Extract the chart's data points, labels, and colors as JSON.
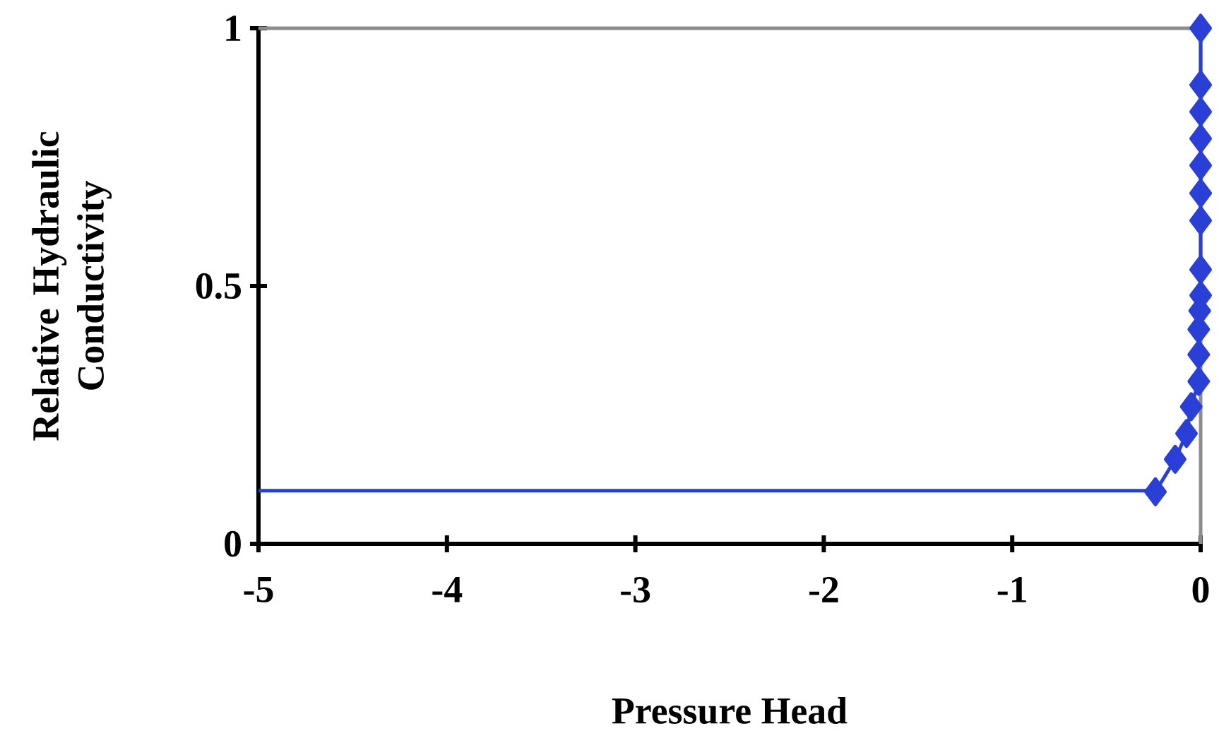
{
  "chart_data": {
    "type": "line",
    "xlabel": "Pressure Head",
    "ylabel": "Relative Hydraulic Conductivity",
    "xlim": [
      -5,
      0
    ],
    "ylim": [
      0,
      1
    ],
    "xticks": [
      -5,
      -4,
      -3,
      -2,
      -1,
      0
    ],
    "yticks": [
      0,
      0.5,
      1
    ],
    "marker": "diamond",
    "series": [
      {
        "color": "#2a3fd6",
        "marker": "none",
        "x": [
          -5,
          -0.24
        ],
        "values": [
          0.103,
          0.103
        ]
      },
      {
        "color": "#2a3fd6",
        "x": [
          -0.24,
          -0.135,
          -0.075,
          -0.05,
          -0.01,
          -0.01,
          -0.01,
          -0.005,
          0,
          0,
          0,
          0,
          0,
          0,
          0,
          0,
          0
        ],
        "values": [
          0.101,
          0.164,
          0.214,
          0.266,
          0.315,
          0.367,
          0.416,
          0.452,
          0.482,
          0.532,
          0.627,
          0.68,
          0.734,
          0.786,
          0.838,
          0.89,
          1.0
        ]
      }
    ]
  }
}
